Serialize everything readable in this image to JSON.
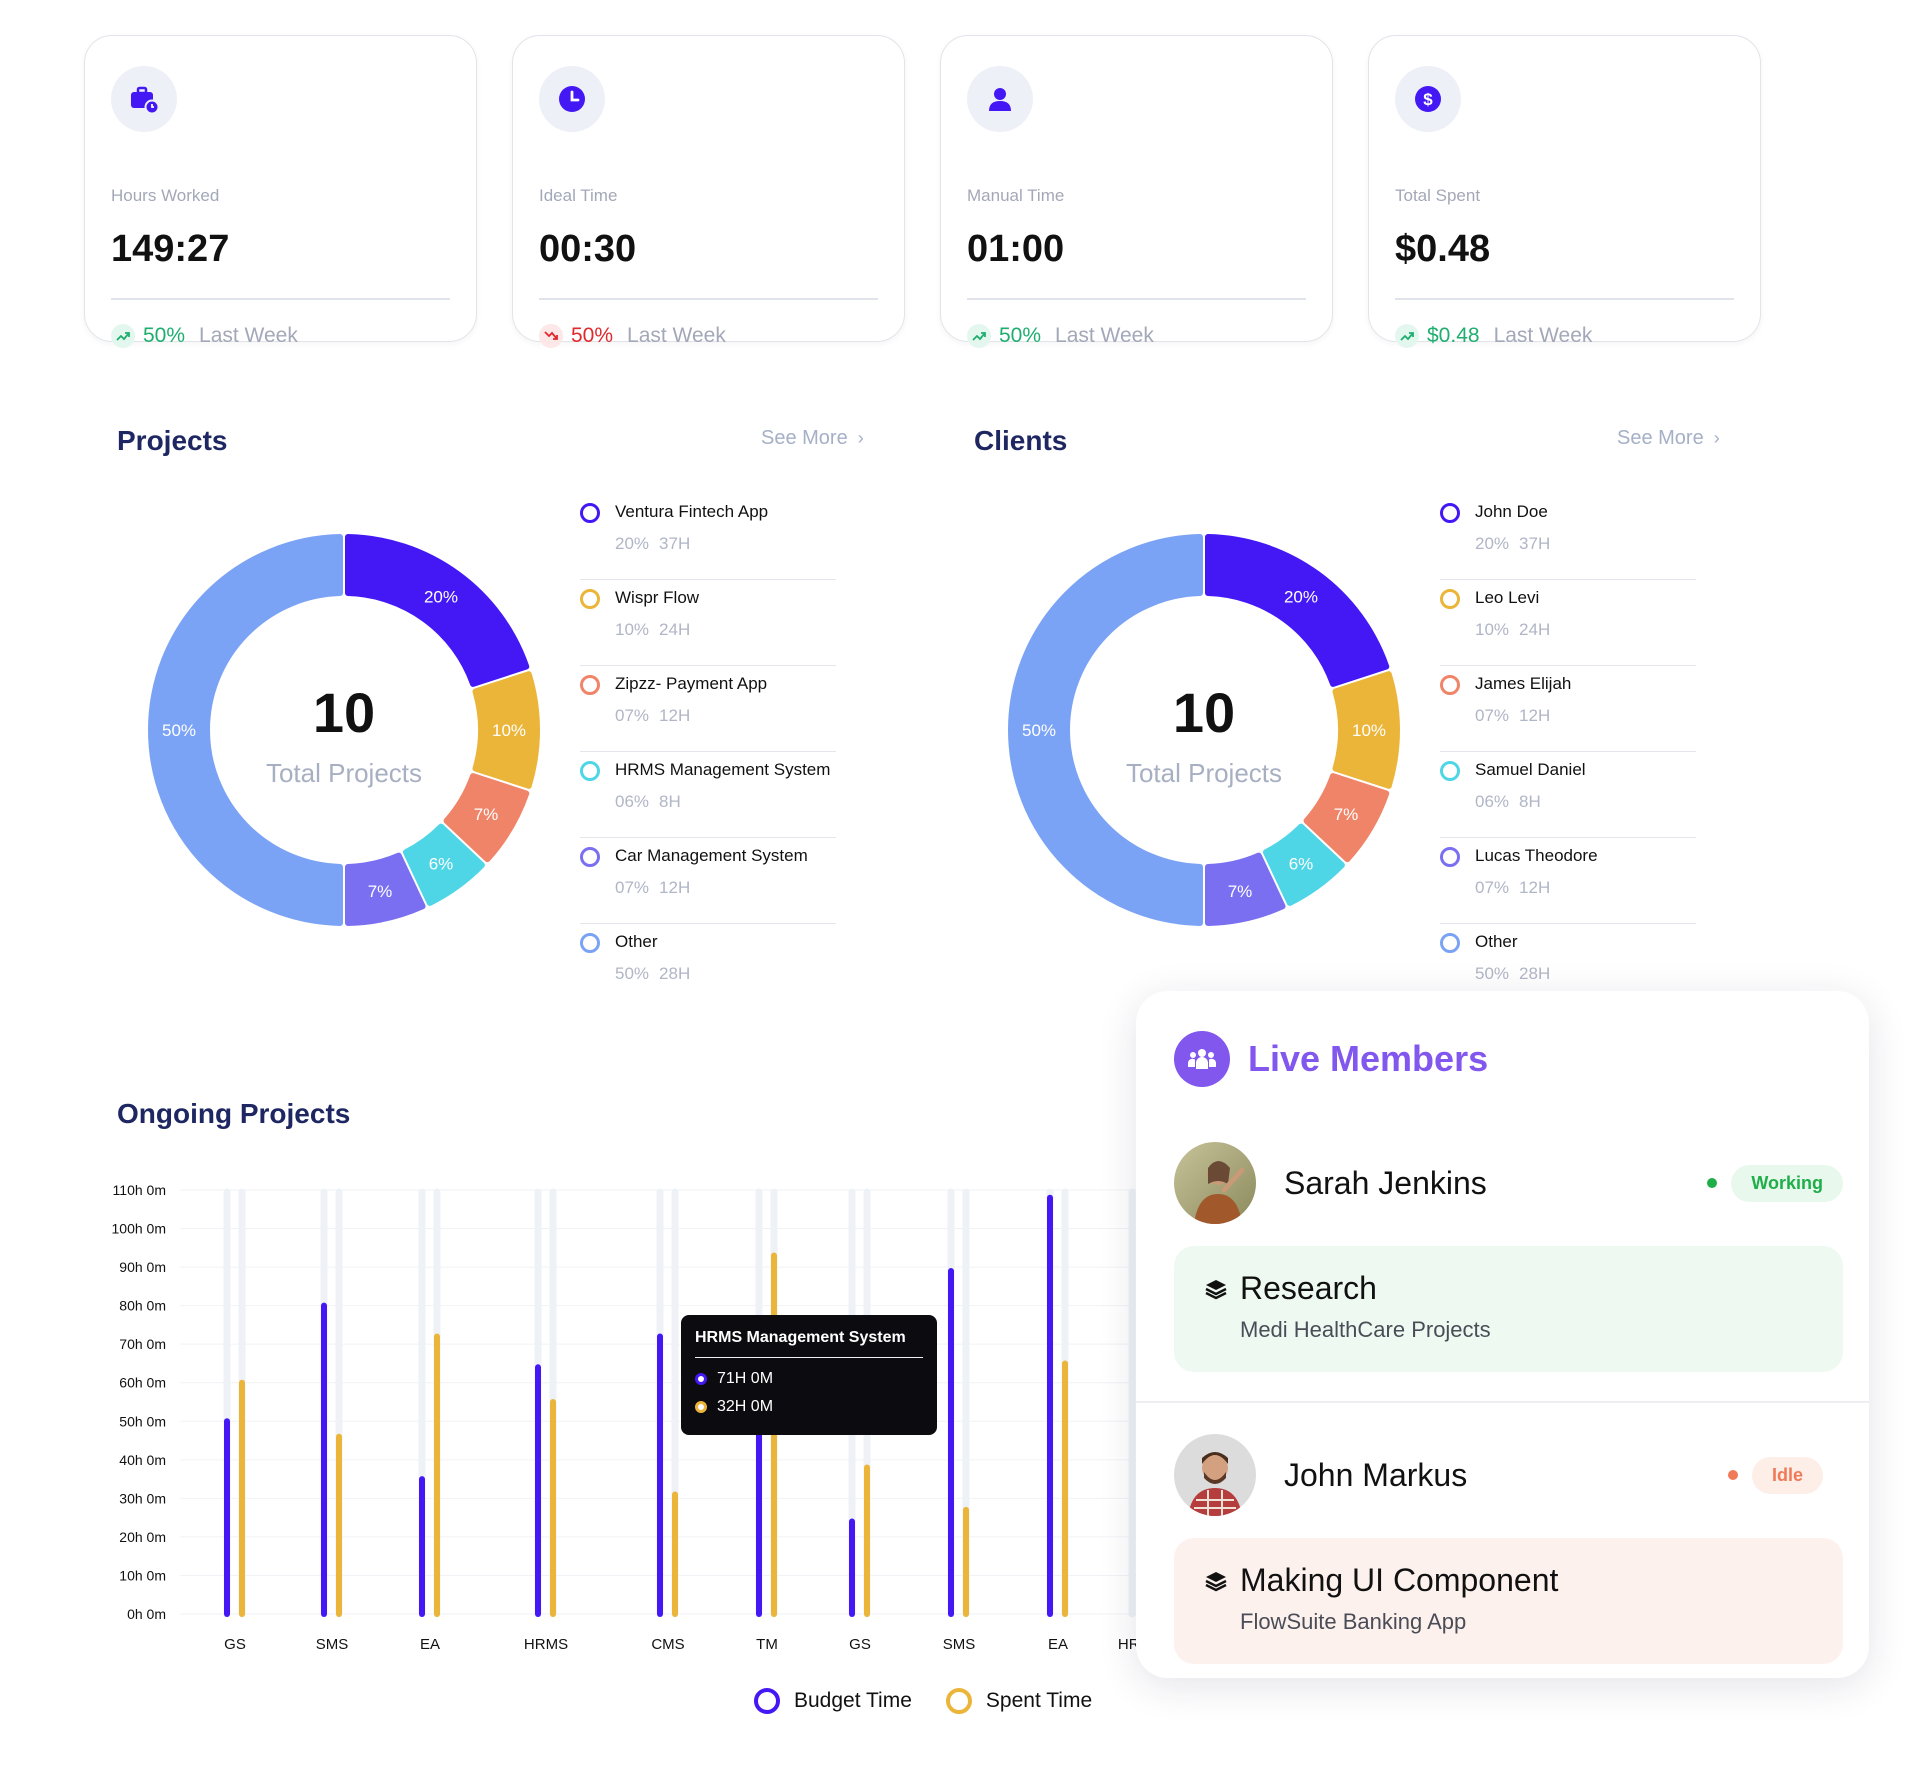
{
  "stats": [
    {
      "label": "Hours Worked",
      "value": "149:27",
      "change": "50%",
      "trend": "up",
      "period": "Last Week",
      "icon": "briefcase-clock-icon"
    },
    {
      "label": "Ideal Time",
      "value": "00:30",
      "change": "50%",
      "trend": "down",
      "period": "Last Week",
      "icon": "clock-icon"
    },
    {
      "label": "Manual Time",
      "value": "01:00",
      "change": "50%",
      "trend": "up",
      "period": "Last Week",
      "icon": "user-icon"
    },
    {
      "label": "Total Spent",
      "value": "$0.48",
      "change": "$0.48",
      "trend": "up",
      "period": "Last Week",
      "icon": "dollar-icon"
    }
  ],
  "projects": {
    "title": "Projects",
    "see_more": "See More",
    "total": "10",
    "total_label": "Total Projects",
    "slices": [
      {
        "label": "20%",
        "value": 20,
        "color": "#4318f5"
      },
      {
        "label": "10%",
        "value": 10,
        "color": "#ebb53a"
      },
      {
        "label": "7%",
        "value": 7,
        "color": "#f08468"
      },
      {
        "label": "6%",
        "value": 6,
        "color": "#4fd6e6"
      },
      {
        "label": "7%",
        "value": 7,
        "color": "#7a6ff0"
      },
      {
        "label": "50%",
        "value": 50,
        "color": "#7ba3f5"
      }
    ],
    "legend": [
      {
        "name": "Ventura Fintech App",
        "pct": "20%",
        "hours": "37H",
        "color": "#4318f5"
      },
      {
        "name": "Wispr Flow",
        "pct": "10%",
        "hours": "24H",
        "color": "#ebb53a"
      },
      {
        "name": "Zipzz- Payment App",
        "pct": "07%",
        "hours": "12H",
        "color": "#f08468"
      },
      {
        "name": "HRMS Management System",
        "pct": "06%",
        "hours": "8H",
        "color": "#4fd6e6"
      },
      {
        "name": "Car Management System",
        "pct": "07%",
        "hours": "12H",
        "color": "#7a6ff0"
      },
      {
        "name": "Other",
        "pct": "50%",
        "hours": "28H",
        "color": "#7ba3f5"
      }
    ]
  },
  "clients": {
    "title": "Clients",
    "see_more": "See More",
    "total": "10",
    "total_label": "Total Projects",
    "slices": [
      {
        "label": "20%",
        "value": 20,
        "color": "#4318f5"
      },
      {
        "label": "10%",
        "value": 10,
        "color": "#ebb53a"
      },
      {
        "label": "7%",
        "value": 7,
        "color": "#f08468"
      },
      {
        "label": "6%",
        "value": 6,
        "color": "#4fd6e6"
      },
      {
        "label": "7%",
        "value": 7,
        "color": "#7a6ff0"
      },
      {
        "label": "50%",
        "value": 50,
        "color": "#7ba3f5"
      }
    ],
    "legend": [
      {
        "name": "John Doe",
        "pct": "20%",
        "hours": "37H",
        "color": "#4318f5"
      },
      {
        "name": "Leo Levi",
        "pct": "10%",
        "hours": "24H",
        "color": "#ebb53a"
      },
      {
        "name": "James Elijah",
        "pct": "07%",
        "hours": "12H",
        "color": "#f08468"
      },
      {
        "name": "Samuel Daniel",
        "pct": "06%",
        "hours": "8H",
        "color": "#4fd6e6"
      },
      {
        "name": "Lucas Theodore",
        "pct": "07%",
        "hours": "12H",
        "color": "#7a6ff0"
      },
      {
        "name": "Other",
        "pct": "50%",
        "hours": "28H",
        "color": "#7ba3f5"
      }
    ]
  },
  "ongoing": {
    "title": "Ongoing Projects",
    "legend_budget": "Budget Time",
    "legend_spent": "Spent Time",
    "budget_color": "#4318f5",
    "spent_color": "#ebb53a",
    "tooltip": {
      "title": "HRMS Management System",
      "budget": "71H 0M",
      "spent": "32H 0M"
    }
  },
  "chart_data": {
    "type": "bar",
    "categories": [
      "GS",
      "SMS",
      "EA",
      "HRMS",
      "CMS",
      "TM",
      "GS",
      "SMS",
      "EA",
      "HRMS"
    ],
    "series": [
      {
        "name": "Budget Time",
        "values": [
          50,
          80,
          35,
          64,
          72,
          60,
          24,
          89,
          108,
          null
        ]
      },
      {
        "name": "Spent Time",
        "values": [
          60,
          46,
          72,
          55,
          31,
          93,
          38,
          27,
          65,
          null
        ]
      }
    ],
    "yticks": [
      "110h 0m",
      "100h 0m",
      "90h 0m",
      "80h 0m",
      "70h 0m",
      "60h 0m",
      "50h 0m",
      "40h 0m",
      "30h 0m",
      "20h 0m",
      "10h 0m",
      "0h 0m"
    ],
    "ylim": [
      0,
      110
    ],
    "grid": true,
    "legend_position": "bottom"
  },
  "live_members": {
    "title": "Live Members",
    "members": [
      {
        "name": "Sarah Jenkins",
        "status": "Working",
        "status_color": "#1fae4a",
        "status_bg": "#e8f8ec",
        "task": "Research",
        "project": "Medi HealthCare Projects",
        "task_bg": "#eefaf1"
      },
      {
        "name": "John Markus",
        "status": "Idle",
        "status_color": "#f07a58",
        "status_bg": "#fdeee8",
        "task": "Making UI Component",
        "project": "FlowSuite Banking App",
        "task_bg": "#fdf1ee"
      }
    ]
  }
}
